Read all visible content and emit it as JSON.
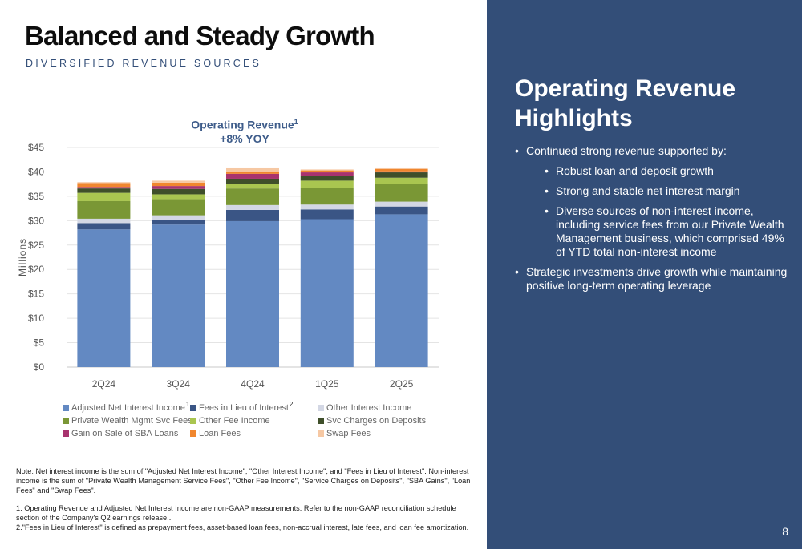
{
  "slide": {
    "title": "Balanced and Steady Growth",
    "subtitle": "DIVERSIFIED REVENUE SOURCES",
    "page_number": "8"
  },
  "chart_data": {
    "type": "bar",
    "stacked": true,
    "title": "Operating Revenue",
    "title_sup": "1",
    "subtitle": "+8%  YOY",
    "ylabel": "Millions",
    "xlabel": "",
    "categories": [
      "2Q24",
      "3Q24",
      "4Q24",
      "1Q25",
      "2Q25"
    ],
    "ylim": [
      0,
      45
    ],
    "yticks": [
      0,
      5,
      10,
      15,
      20,
      25,
      30,
      35,
      40,
      45
    ],
    "ytick_labels": [
      "$0",
      "$5",
      "$10",
      "$15",
      "$20",
      "$25",
      "$30",
      "$35",
      "$40",
      "$45"
    ],
    "grid": true,
    "legend_position": "bottom",
    "series": [
      {
        "name": "Adjusted Net Interest Income",
        "sup": "1",
        "color": "#6389c2",
        "values": [
          28.2,
          29.2,
          29.9,
          30.3,
          31.3
        ]
      },
      {
        "name": "Fees in Lieu of Interest",
        "sup": "2",
        "color": "#3a5585",
        "values": [
          1.3,
          1.0,
          2.3,
          2.0,
          1.6
        ]
      },
      {
        "name": "Other Interest Income",
        "sup": "",
        "color": "#d3d7e4",
        "values": [
          0.9,
          0.9,
          1.0,
          1.0,
          1.0
        ]
      },
      {
        "name": "Private Wealth Mgmt Svc Fees",
        "sup": "",
        "color": "#7a9735",
        "values": [
          3.6,
          3.3,
          3.4,
          3.4,
          3.6
        ]
      },
      {
        "name": "Other Fee Income",
        "sup": "",
        "color": "#a9c550",
        "values": [
          1.7,
          1.0,
          1.0,
          1.5,
          1.3
        ]
      },
      {
        "name": "Svc Charges on Deposits",
        "sup": "",
        "color": "#3f4f2a",
        "values": [
          0.9,
          1.1,
          1.0,
          1.0,
          1.1
        ]
      },
      {
        "name": "Gain on Sale of SBA Loans",
        "sup": "",
        "color": "#a8336e",
        "values": [
          0.3,
          0.6,
          1.0,
          0.7,
          0.2
        ]
      },
      {
        "name": "Loan Fees",
        "sup": "",
        "color": "#f0862e",
        "values": [
          0.8,
          0.7,
          0.4,
          0.4,
          0.5
        ]
      },
      {
        "name": "Swap Fees",
        "sup": "",
        "color": "#f6c8a3",
        "values": [
          0.2,
          0.4,
          0.9,
          0.2,
          0.3
        ]
      }
    ]
  },
  "notes": {
    "note1": "Note: Net interest income is the sum of \"Adjusted Net Interest Income\", \"Other Interest Income\", and \"Fees in Lieu of Interest\". Non-interest income is the sum of \"Private Wealth Management Service Fees\", \"Other Fee Income\", \"Service Charges on Deposits\", \"SBA Gains\",  \"Loan Fees\" and \"Swap Fees\".",
    "note2": "1. Operating Revenue and Adjusted Net Interest Income are non-GAAP measurements. Refer to the non-GAAP reconciliation schedule section of the Company's Q2 earnings release..",
    "note3": "2.\"Fees in Lieu of Interest\" is defined as prepayment fees, asset-based loan fees, non-accrual interest, late fees, and loan fee amortization."
  },
  "panel": {
    "title": "Operating Revenue Highlights",
    "bullet_1": "Continued strong revenue supported by:",
    "sub_1": "Robust loan and deposit growth",
    "sub_2": "Strong and stable net interest margin",
    "sub_3": "Diverse sources of non-interest income, including service fees from our Private Wealth Management business, which comprised 49% of YTD total non-interest income",
    "bullet_2": "Strategic investments drive growth while maintaining positive long-term operating leverage"
  }
}
